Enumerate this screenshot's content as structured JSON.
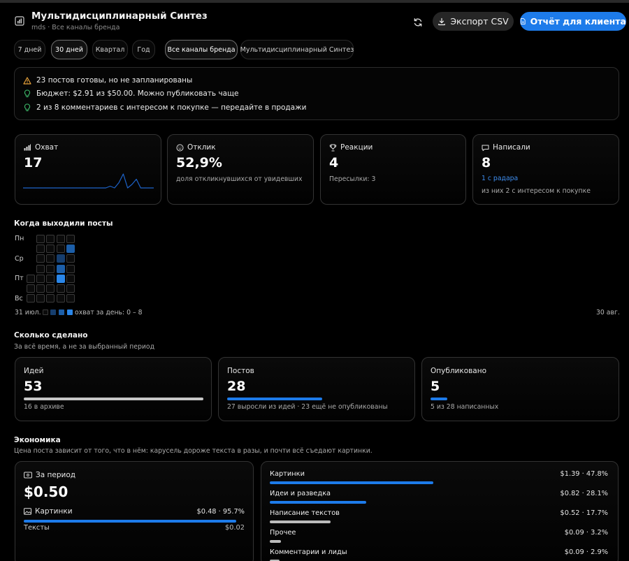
{
  "header": {
    "title": "Мультидисциплинарный Синтез",
    "subtitle": "mds · Все каналы бренда",
    "export_label": "Экспорт CSV",
    "report_label": "Отчёт для клиента"
  },
  "tabs": [
    {
      "label": "7 дней",
      "active": false
    },
    {
      "label": "30 дней",
      "active": true
    },
    {
      "label": "Квартал",
      "active": false
    },
    {
      "label": "Год",
      "active": false
    },
    {
      "label": "Все каналы бренда",
      "active": true
    },
    {
      "label": "Мультидисциплинарный Синтез",
      "active": false
    }
  ],
  "alerts": [
    {
      "icon": "warning-icon",
      "text": "23 постов готовы, но не запланированы"
    },
    {
      "icon": "lightbulb-icon",
      "text": "Бюджет: $2.91 из $50.00. Можно публиковать чаще"
    },
    {
      "icon": "lightbulb-icon",
      "text": "2 из 8 комментариев с интересом к покупке — передайте в продажи"
    }
  ],
  "metrics": {
    "reach": {
      "label": "Охват",
      "value": "17",
      "sparkline": [
        0,
        0,
        0,
        0,
        0,
        0,
        0,
        0,
        0,
        0,
        0,
        0,
        0,
        0,
        0,
        0,
        0,
        0,
        0,
        0,
        1,
        0,
        3,
        8,
        0,
        2,
        5,
        0,
        0,
        0,
        0
      ]
    },
    "engagement": {
      "label": "Отклик",
      "value": "52,9%",
      "sub": "доля откликнувшихся от увидевших"
    },
    "reactions": {
      "label": "Реакции",
      "value": "4",
      "sub": "Пересылки: 3"
    },
    "messages": {
      "label": "Написали",
      "value": "8",
      "link": "1 с радара",
      "sub": "из них 2 с интересом к покупке"
    }
  },
  "heatmap": {
    "title": "Когда выходили посты",
    "day_labels": [
      "Пн",
      "Ср",
      "Пт",
      "Вс"
    ],
    "start_label": "31 июл.",
    "end_label": "30 авг.",
    "legend_text": "охват за день: 0 – 8",
    "colors": [
      "#0b0b0b",
      "#163e6e",
      "#1c5ea8",
      "#2a86e8"
    ]
  },
  "done": {
    "title": "Сколько сделано",
    "subtitle": "За всё время, а не за выбранный период",
    "cards": [
      {
        "label": "Идей",
        "value": "53",
        "sub": "16 в архиве",
        "fill": 1.0,
        "color": "#c8c8c8"
      },
      {
        "label": "Постов",
        "value": "28",
        "sub": "27 выросли из идей · 23 ещё не опубликованы",
        "fill": 0.5283,
        "color": "#1d7bea"
      },
      {
        "label": "Опубликовано",
        "value": "5",
        "sub": "5 из 28 написанных",
        "fill": 0.0943,
        "color": "#1d7bea"
      }
    ]
  },
  "economy": {
    "title": "Экономика",
    "subtitle": "Цена поста зависит от того, что в нём: карусель дороже текста в разы, и почти всё съедают картинки.",
    "period": {
      "label": "За период",
      "value": "$0.50",
      "rows": [
        {
          "label": "Картинки",
          "value": "$0.48 · 95.7%",
          "fill": 0.957
        },
        {
          "label": "Тексты",
          "value": "$0.02",
          "fill": 0.043
        }
      ]
    },
    "breakdown": [
      {
        "label": "Картинки",
        "value": "$1.39 · 47.8%",
        "fill": 0.478,
        "color": "#1d7bea"
      },
      {
        "label": "Идеи и разведка",
        "value": "$0.82 · 28.1%",
        "fill": 0.281,
        "color": "#1d7bea"
      },
      {
        "label": "Написание текстов",
        "value": "$0.52 · 17.7%",
        "fill": 0.177,
        "color": "#bcbcbc"
      },
      {
        "label": "Прочее",
        "value": "$0.09 · 3.2%",
        "fill": 0.032,
        "color": "#bcbcbc"
      },
      {
        "label": "Комментарии и лиды",
        "value": "$0.09 · 2.9%",
        "fill": 0.029,
        "color": "#bcbcbc"
      }
    ]
  }
}
